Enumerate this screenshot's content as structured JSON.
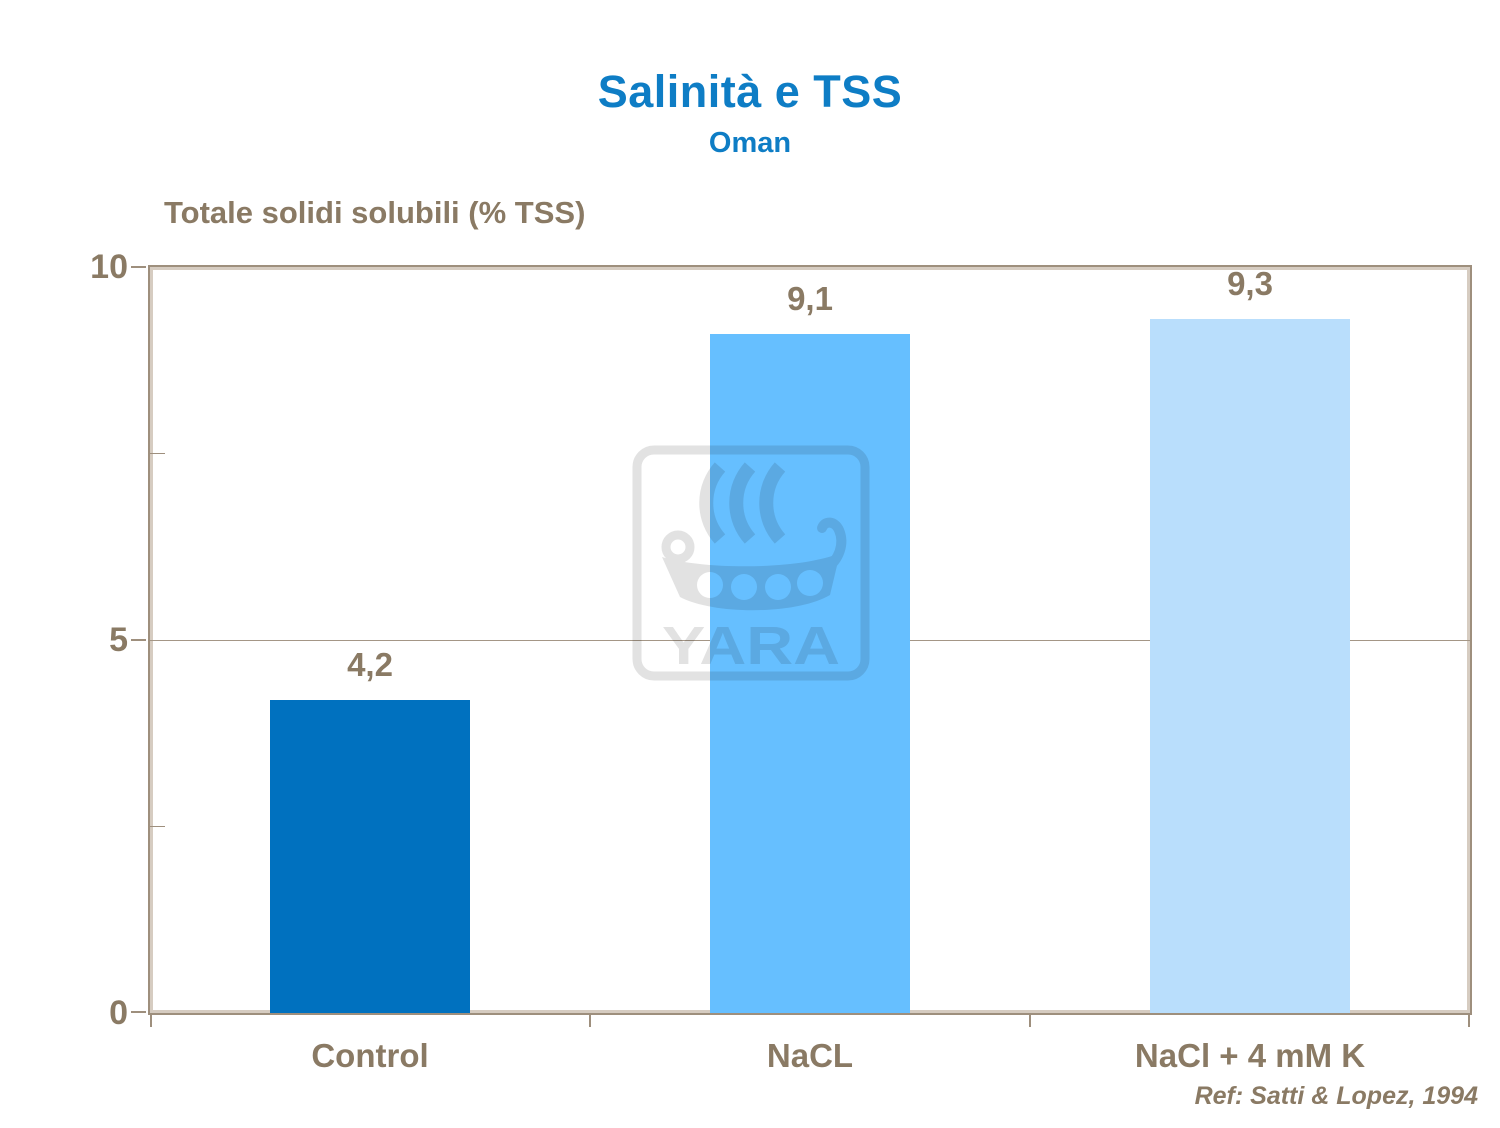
{
  "title": "Salinità e TSS",
  "subtitle": "Oman",
  "reference": "Ref: Satti  & Lopez, 1994",
  "watermark_text": "YARA",
  "colors": {
    "title_blue": "#0E7DC5",
    "label_brown": "#8A7A64",
    "frame_dark": "#9E8F7D",
    "frame_light": "#D6CCC1",
    "gridline": "#A49686",
    "watermark_gray": "#E2E2E2"
  },
  "chart_data": {
    "type": "bar",
    "title": "Salinità e TSS",
    "subtitle": "Oman",
    "ylabel": "Totale solidi solubili (% TSS)",
    "xlabel": "",
    "categories": [
      "Control",
      "NaCL",
      "NaCl + 4 mM K"
    ],
    "values": [
      4.2,
      9.1,
      9.3
    ],
    "value_labels": [
      "4,2",
      "9,1",
      "9,3"
    ],
    "bar_colors": [
      "#0071BF",
      "#66BFFF",
      "#B9DEFC"
    ],
    "ylim": [
      0,
      10
    ],
    "yticks": [
      0,
      5,
      10
    ],
    "ytick_labels": [
      "0",
      "5",
      "10"
    ],
    "minor_yticks": [
      2.5,
      7.5
    ],
    "gridlines": [
      5
    ],
    "legend": false,
    "grid": "horizontal-at-5-only"
  }
}
